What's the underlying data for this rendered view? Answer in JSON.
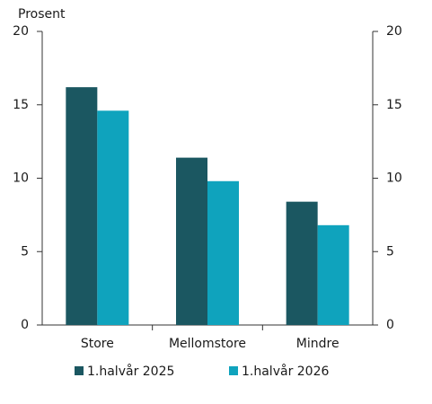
{
  "chart_data": {
    "type": "bar",
    "y_label": "Prosent",
    "categories": [
      "Store",
      "Mellomstore",
      "Mindre"
    ],
    "series": [
      {
        "name": "1.halvår 2025",
        "color": "#1b5761",
        "values": [
          16.2,
          11.4,
          8.4
        ]
      },
      {
        "name": "1.halvår 2026",
        "color": "#0fa3bd",
        "values": [
          14.6,
          9.8,
          6.8
        ]
      }
    ],
    "ylim": [
      0,
      20
    ],
    "yticks": [
      0,
      5,
      10,
      15,
      20
    ],
    "y2lim": [
      0,
      20
    ],
    "y2ticks": [
      0,
      5,
      10,
      15,
      20
    ],
    "grid": false,
    "legend": "bottom"
  }
}
